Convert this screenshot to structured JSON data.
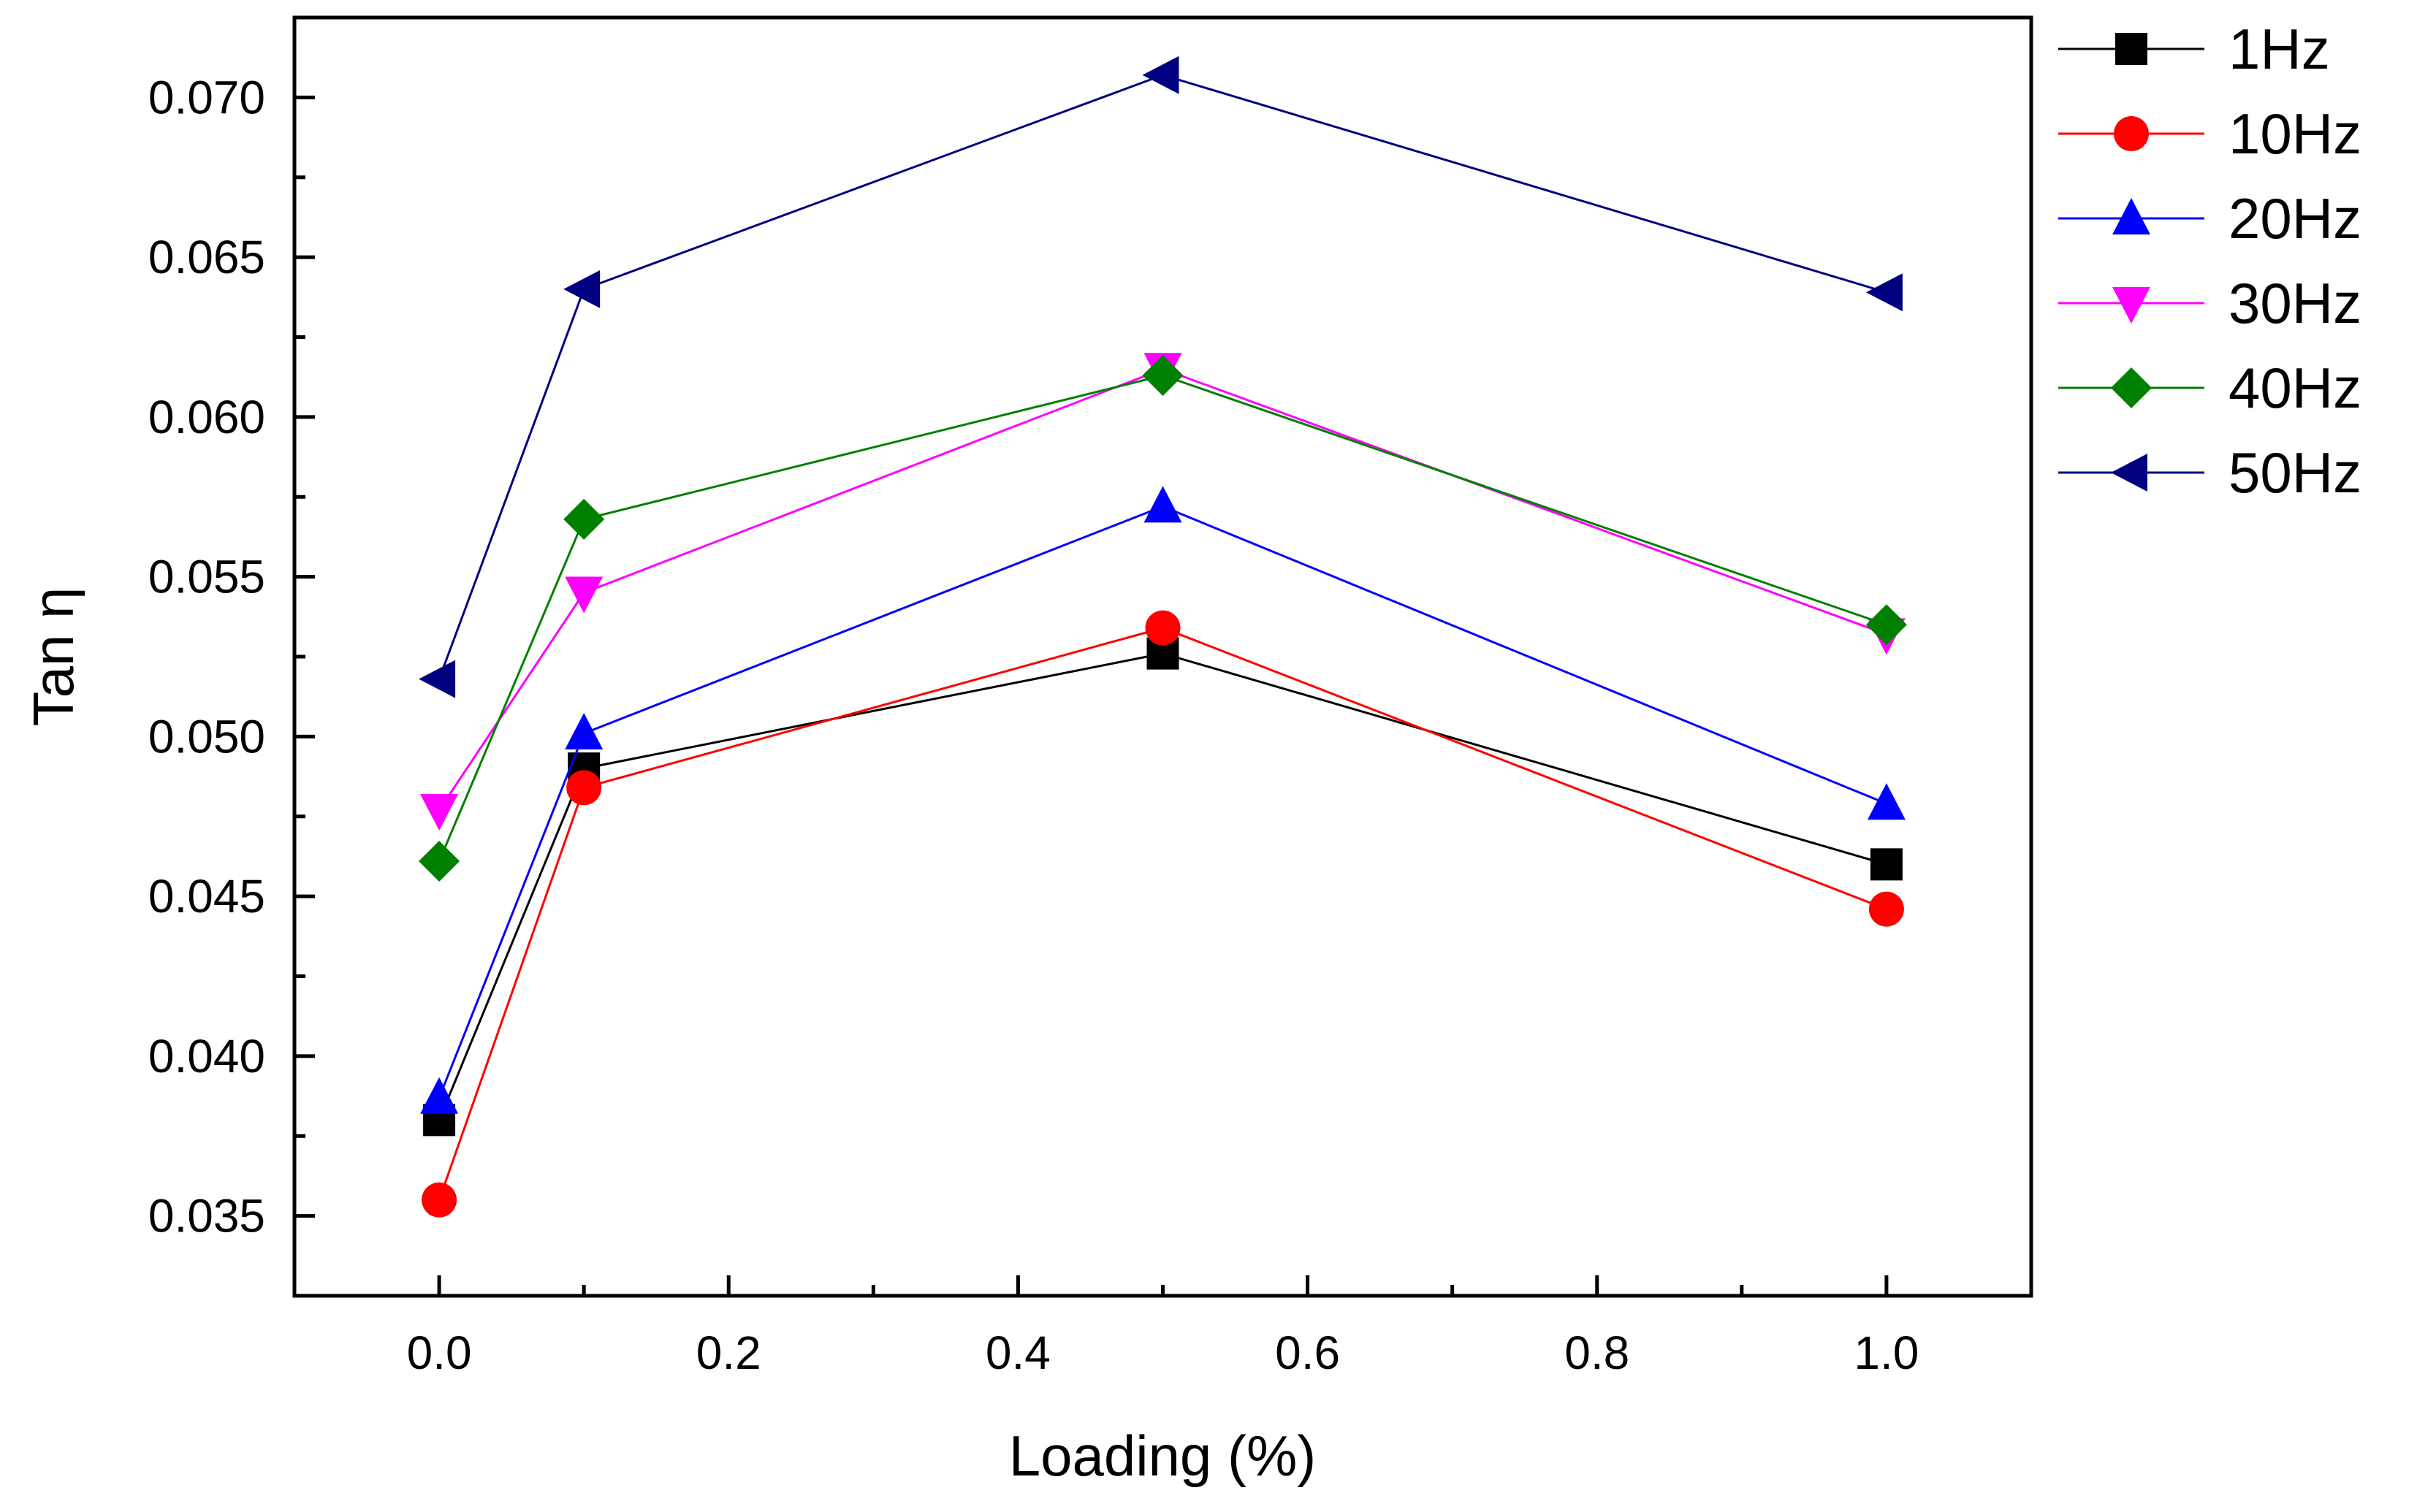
{
  "chart_data": {
    "type": "line",
    "xlabel": "Loading (%)",
    "ylabel": "Tan η",
    "xlim": [
      -0.1,
      1.1
    ],
    "ylim": [
      0.0325,
      0.0725
    ],
    "x_ticks": [
      "0.0",
      "0.2",
      "0.4",
      "0.6",
      "0.8",
      "1.0"
    ],
    "x_tick_values": [
      0.0,
      0.2,
      0.4,
      0.6,
      0.8,
      1.0
    ],
    "y_ticks": [
      "0.035",
      "0.040",
      "0.045",
      "0.050",
      "0.055",
      "0.060",
      "0.065",
      "0.070"
    ],
    "y_tick_values": [
      0.035,
      0.04,
      0.045,
      0.05,
      0.055,
      0.06,
      0.065,
      0.07
    ],
    "legend_position": "right",
    "grid": false,
    "x": [
      0.0,
      0.1,
      0.5,
      1.0
    ],
    "series": [
      {
        "name": "1Hz",
        "color": "#000000",
        "marker": "square",
        "values": [
          0.038,
          0.049,
          0.0526,
          0.046
        ]
      },
      {
        "name": "10Hz",
        "color": "#ff0000",
        "marker": "circle",
        "values": [
          0.0355,
          0.0484,
          0.0534,
          0.0446
        ]
      },
      {
        "name": "20Hz",
        "color": "#0000ff",
        "marker": "triangle-up",
        "values": [
          0.0387,
          0.0501,
          0.0572,
          0.0479
        ]
      },
      {
        "name": "30Hz",
        "color": "#ff00ff",
        "marker": "triangle-down",
        "values": [
          0.0477,
          0.0545,
          0.0615,
          0.0532
        ]
      },
      {
        "name": "40Hz",
        "color": "#008000",
        "marker": "diamond",
        "values": [
          0.0461,
          0.0568,
          0.0613,
          0.0535
        ]
      },
      {
        "name": "50Hz",
        "color": "#000080",
        "marker": "triangle-left",
        "values": [
          0.0518,
          0.064,
          0.0707,
          0.0639
        ]
      }
    ]
  }
}
